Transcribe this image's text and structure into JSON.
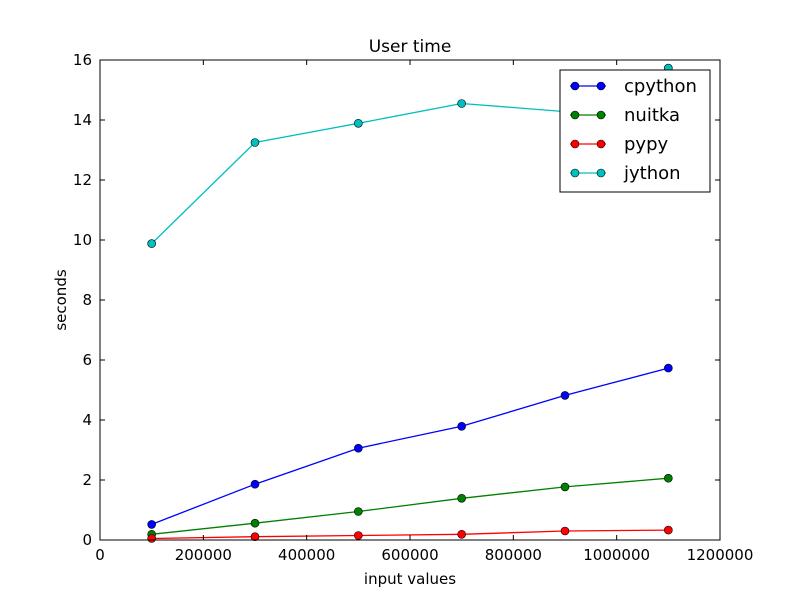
{
  "chart_data": {
    "type": "line",
    "title": "User time",
    "xlabel": "input values",
    "ylabel": "seconds",
    "xlim": [
      0,
      1200000
    ],
    "ylim": [
      0,
      16
    ],
    "x_ticks": [
      "0",
      "200000",
      "400000",
      "600000",
      "800000",
      "1000000",
      "1200000"
    ],
    "y_ticks": [
      "0",
      "2",
      "4",
      "6",
      "8",
      "10",
      "12",
      "14",
      "16"
    ],
    "x": [
      100000,
      300000,
      500000,
      700000,
      900000,
      1100000
    ],
    "grid": false,
    "legend_position": "top-right",
    "series": [
      {
        "name": "cpython",
        "color": "#0000ff",
        "marker": "circle",
        "values": [
          0.52,
          1.86,
          3.06,
          3.79,
          4.82,
          5.73
        ]
      },
      {
        "name": "nuitka",
        "color": "#008000",
        "marker": "circle",
        "values": [
          0.19,
          0.56,
          0.95,
          1.39,
          1.77,
          2.06
        ]
      },
      {
        "name": "pypy",
        "color": "#ff0000",
        "marker": "circle",
        "values": [
          0.05,
          0.11,
          0.15,
          0.19,
          0.3,
          0.33
        ]
      },
      {
        "name": "jython",
        "color": "#00bfbf",
        "marker": "circle",
        "values": [
          9.88,
          13.25,
          13.89,
          14.55,
          14.28,
          15.73
        ]
      }
    ]
  }
}
